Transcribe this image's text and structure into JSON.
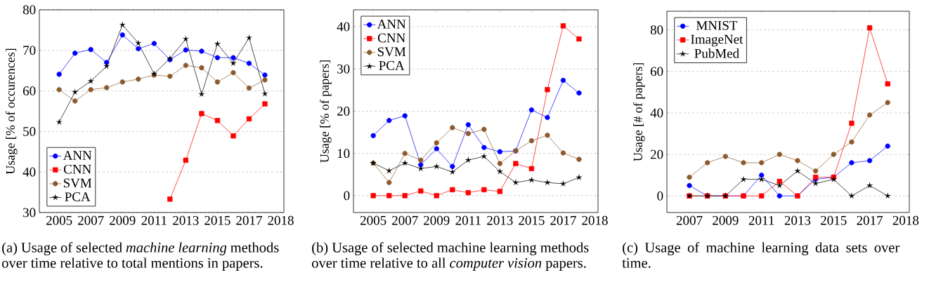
{
  "chart_data": [
    {
      "type": "line",
      "ylabel": "Usage [% of occurences]",
      "categories": [
        "2005",
        null,
        "2007",
        null,
        "2009",
        null,
        "2011",
        null,
        "2013",
        null,
        "2015",
        null,
        "2017",
        null,
        "2018"
      ],
      "ylim": [
        30,
        80
      ],
      "yticks": [
        30,
        40,
        50,
        60,
        70,
        80
      ],
      "grid": "y",
      "legend": "bottom left",
      "annotations": [
        "(a) Usage of selected *machine learning* methods over time relative to total mentions in papers."
      ],
      "series": [
        {
          "name": "ANN",
          "color": "#0000ff",
          "marker": "circle",
          "values": [
            64.1,
            69.3,
            70.2,
            67.0,
            73.8,
            70.4,
            71.7,
            67.7,
            70.1,
            69.8,
            68.2,
            68.2,
            66.8,
            63.9,
            null
          ]
        },
        {
          "name": "CNN",
          "color": "#ff0000",
          "marker": "square",
          "values": [
            null,
            null,
            null,
            null,
            null,
            null,
            null,
            33.3,
            42.9,
            54.4,
            52.7,
            48.9,
            53.1,
            56.8,
            null
          ]
        },
        {
          "name": "SVM",
          "color": "#8c5a2c",
          "marker": "circle",
          "values": [
            60.3,
            57.5,
            60.3,
            60.8,
            62.2,
            62.9,
            63.9,
            63.6,
            66.3,
            65.7,
            62.2,
            64.5,
            60.7,
            62.7,
            null
          ]
        },
        {
          "name": "PCA",
          "color": "#000000",
          "marker": "star",
          "values": [
            52.3,
            59.7,
            62.4,
            66.1,
            76.3,
            71.8,
            64.2,
            68.0,
            72.8,
            59.2,
            71.6,
            66.8,
            73.1,
            59.3,
            null
          ]
        }
      ]
    },
    {
      "type": "line",
      "ylabel": "Usage [% of papers]",
      "categories": [
        "2005",
        null,
        "2007",
        null,
        "2009",
        null,
        "2011",
        null,
        "2013",
        null,
        "2015",
        null,
        "2017",
        null,
        "2018"
      ],
      "ylim": [
        -4,
        44
      ],
      "yticks": [
        0,
        10,
        20,
        30,
        40
      ],
      "grid": "y",
      "legend": "top left",
      "annotations": [
        "(b) Usage of selected machine learning methods over time relative to all *computer vision* papers."
      ],
      "series": [
        {
          "name": "ANN",
          "color": "#0000ff",
          "marker": "circle",
          "values": [
            14.2,
            17.8,
            18.9,
            7.3,
            11.1,
            6.9,
            16.8,
            11.4,
            10.4,
            10.6,
            20.3,
            18.5,
            27.3,
            24.3,
            null
          ]
        },
        {
          "name": "CNN",
          "color": "#ff0000",
          "marker": "square",
          "values": [
            0,
            0,
            0,
            1.1,
            0,
            1.4,
            0.7,
            1.4,
            1.0,
            7.6,
            6.4,
            25.1,
            40.2,
            37.1,
            null
          ]
        },
        {
          "name": "SVM",
          "color": "#8c5a2c",
          "marker": "circle",
          "values": [
            7.7,
            3.1,
            10.0,
            8.4,
            12.5,
            16.1,
            14.7,
            15.7,
            7.6,
            10.6,
            13.0,
            14.3,
            10.1,
            8.6,
            null
          ]
        },
        {
          "name": "PCA",
          "color": "#000000",
          "marker": "star",
          "values": [
            7.7,
            5.9,
            7.7,
            6.4,
            6.9,
            5.6,
            8.4,
            9.3,
            5.7,
            3.1,
            3.7,
            3.1,
            2.8,
            4.3,
            null
          ]
        }
      ]
    },
    {
      "type": "line",
      "ylabel": "Usage [# of papers]",
      "categories": [
        "2007",
        null,
        "2009",
        null,
        "2011",
        null,
        "2013",
        null,
        "2015",
        null,
        "2017",
        null,
        "2018"
      ],
      "ylim": [
        -8,
        89
      ],
      "yticks": [
        0,
        20,
        40,
        60,
        80
      ],
      "grid": "y",
      "legend": "top left",
      "annotations": [
        "(c) Usage of machine learning data sets over time."
      ],
      "series": [
        {
          "name": "MNIST",
          "color": "#0000ff",
          "marker": "circle",
          "values": [
            5,
            0,
            0,
            0,
            10,
            0,
            0,
            8,
            9,
            16,
            17,
            24,
            null
          ]
        },
        {
          "name": "ImageNet",
          "color": "#ff0000",
          "marker": "square",
          "values": [
            0,
            0,
            0,
            0,
            0,
            7,
            0,
            9,
            9,
            35,
            81,
            54,
            null
          ]
        },
        {
          "color": "#8c5a2c",
          "marker": "circle",
          "values": [
            9,
            16,
            19,
            16,
            16,
            20,
            17,
            12,
            20,
            26,
            39,
            45,
            null
          ]
        },
        {
          "name": "PubMed",
          "color": "#000000",
          "marker": "star",
          "values": [
            0,
            0,
            0,
            8,
            8,
            5,
            12,
            6,
            8,
            0,
            5,
            0,
            null
          ]
        }
      ]
    }
  ]
}
